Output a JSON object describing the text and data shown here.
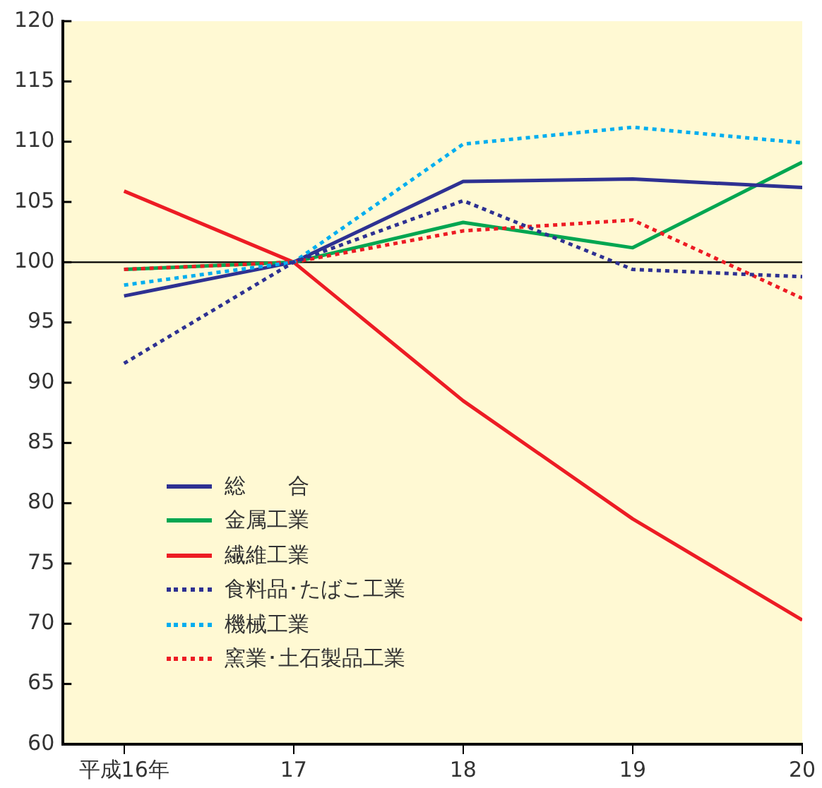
{
  "chart_data": {
    "type": "line",
    "x": [
      16,
      17,
      18,
      19,
      20
    ],
    "xlim": [
      15.64,
      20
    ],
    "xticks": [
      {
        "value": 16,
        "label": "平成16年"
      },
      17,
      18,
      19,
      20
    ],
    "ylim": [
      60,
      120
    ],
    "yticks": [
      60,
      65,
      70,
      75,
      80,
      85,
      90,
      95,
      100,
      105,
      110,
      115,
      120
    ],
    "grid": false,
    "legend": "bottom left",
    "marker": "none",
    "ref_lines": [
      {
        "axis": "y",
        "value": 100,
        "color": "#000000"
      }
    ],
    "series": [
      {
        "name": "総　　合",
        "color": "#2e3192",
        "line_style": "solid",
        "values": [
          97.2,
          100,
          106.7,
          106.9,
          106.2
        ]
      },
      {
        "name": "金属工業",
        "color": "#00a651",
        "line_style": "solid",
        "values": [
          99.4,
          100,
          103.3,
          101.2,
          108.3
        ]
      },
      {
        "name": "繊維工業",
        "color": "#ed1c24",
        "line_style": "solid",
        "values": [
          105.9,
          100,
          88.5,
          78.7,
          70.3
        ]
      },
      {
        "name": "食料品･たばこ工業",
        "color": "#2e3192",
        "line_style": "dotted",
        "values": [
          91.6,
          100,
          105.1,
          99.4,
          98.8
        ]
      },
      {
        "name": "機械工業",
        "color": "#00aeef",
        "line_style": "dotted",
        "values": [
          98.1,
          100,
          109.8,
          111.2,
          109.9
        ]
      },
      {
        "name": "窯業･土石製品工業",
        "color": "#ed1c24",
        "line_style": "dotted",
        "values": [
          99.4,
          100,
          102.6,
          103.5,
          97.0
        ]
      }
    ]
  }
}
